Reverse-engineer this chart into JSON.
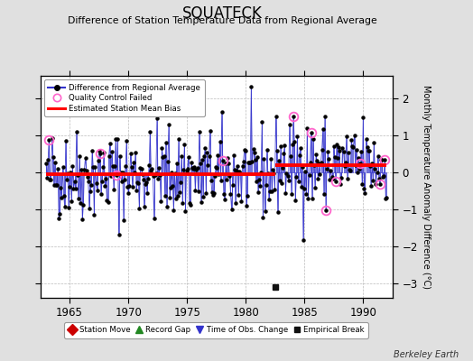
{
  "title": "SQUATECK",
  "subtitle": "Difference of Station Temperature Data from Regional Average",
  "ylabel": "Monthly Temperature Anomaly Difference (°C)",
  "credit": "Berkeley Earth",
  "xlim": [
    1962.5,
    1992.5
  ],
  "ylim": [
    -3.4,
    2.6
  ],
  "yticks": [
    -3,
    -2,
    -1,
    0,
    1,
    2
  ],
  "xticks": [
    1965,
    1970,
    1975,
    1980,
    1985,
    1990
  ],
  "bias_segment1_y": -0.07,
  "bias_segment2_y": 0.18,
  "break_x": 1982.5,
  "empirical_break_y": -3.1,
  "bg_color": "#e0e0e0",
  "plot_bg_color": "#ffffff",
  "line_color": "#3333cc",
  "dot_color": "#000000",
  "bias_color": "#ff0000",
  "qc_color": "#ff66cc",
  "seed": 42,
  "n_points": 348,
  "t_start": 1963.0,
  "t_end": 1992.0
}
